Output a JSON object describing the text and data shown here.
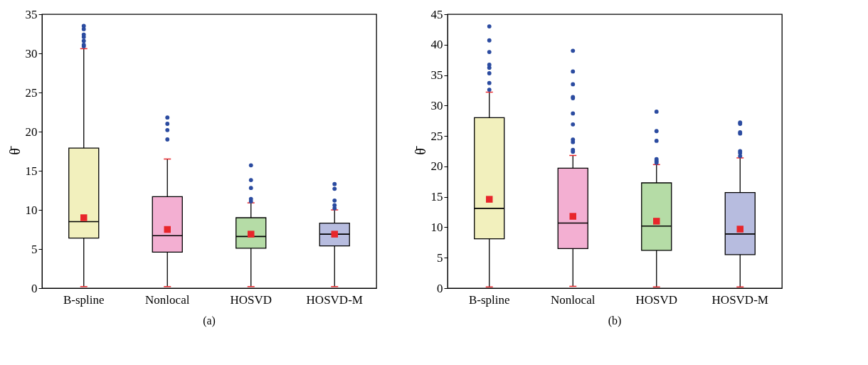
{
  "chart_data": [
    {
      "type": "box",
      "ylabel": "θ̄",
      "annotations": [
        "(a)"
      ],
      "categories": [
        "B-spline",
        "Nonlocal",
        "HOSVD",
        "HOSVD-M"
      ],
      "colors": [
        "#f2f0bd",
        "#f3afd2",
        "#b5dca6",
        "#b7bcdf"
      ],
      "ylim": [
        0,
        35
      ],
      "yticks": [
        0,
        5,
        10,
        15,
        20,
        25,
        30,
        35
      ],
      "grid": false,
      "boxes": [
        {
          "low": 0.2,
          "q1": 6.4,
          "median": 8.5,
          "q3": 17.9,
          "high": 30.6,
          "mean": 9.0,
          "outliers": [
            30.9,
            31.1,
            31.6,
            32.1,
            32.4,
            33.1,
            33.5
          ]
        },
        {
          "low": 0.2,
          "q1": 4.6,
          "median": 6.7,
          "q3": 11.7,
          "high": 16.5,
          "mean": 7.5,
          "outliers": [
            19.0,
            20.2,
            21.0,
            21.8
          ]
        },
        {
          "low": 0.2,
          "q1": 5.1,
          "median": 6.6,
          "q3": 9.0,
          "high": 10.9,
          "mean": 6.9,
          "outliers": [
            11.1,
            11.4,
            12.8,
            13.8,
            15.7
          ]
        },
        {
          "low": 0.2,
          "q1": 5.4,
          "median": 6.9,
          "q3": 8.3,
          "high": 10.0,
          "mean": 6.9,
          "outliers": [
            10.2,
            10.6,
            11.2,
            12.7,
            13.3
          ]
        }
      ]
    },
    {
      "type": "box",
      "ylabel": "θ̄",
      "annotations": [
        "(b)"
      ],
      "categories": [
        "B-spline",
        "Nonlocal",
        "HOSVD",
        "HOSVD-M"
      ],
      "colors": [
        "#f2f0bd",
        "#f3afd2",
        "#b5dca6",
        "#b7bcdf"
      ],
      "ylim": [
        0,
        45
      ],
      "yticks": [
        0,
        5,
        10,
        15,
        20,
        25,
        30,
        35,
        40,
        45
      ],
      "grid": false,
      "boxes": [
        {
          "low": 0.2,
          "q1": 8.1,
          "median": 13.1,
          "q3": 28.0,
          "high": 32.2,
          "mean": 14.6,
          "outliers": [
            32.6,
            33.7,
            35.3,
            36.2,
            36.7,
            38.8,
            40.7,
            43.0
          ]
        },
        {
          "low": 0.3,
          "q1": 6.5,
          "median": 10.7,
          "q3": 19.7,
          "high": 21.8,
          "mean": 11.8,
          "outliers": [
            22.4,
            22.7,
            24.0,
            24.4,
            26.9,
            28.7,
            31.2,
            31.4,
            33.5,
            35.6,
            39.0
          ]
        },
        {
          "low": 0.2,
          "q1": 6.2,
          "median": 10.2,
          "q3": 17.3,
          "high": 20.3,
          "mean": 11.0,
          "outliers": [
            20.6,
            20.9,
            21.2,
            24.2,
            25.8,
            29.0
          ]
        },
        {
          "low": 0.2,
          "q1": 5.5,
          "median": 8.9,
          "q3": 15.7,
          "high": 21.4,
          "mean": 9.7,
          "outliers": [
            21.7,
            22.2,
            22.5,
            25.4,
            25.6,
            27.0,
            27.2
          ]
        }
      ]
    }
  ]
}
